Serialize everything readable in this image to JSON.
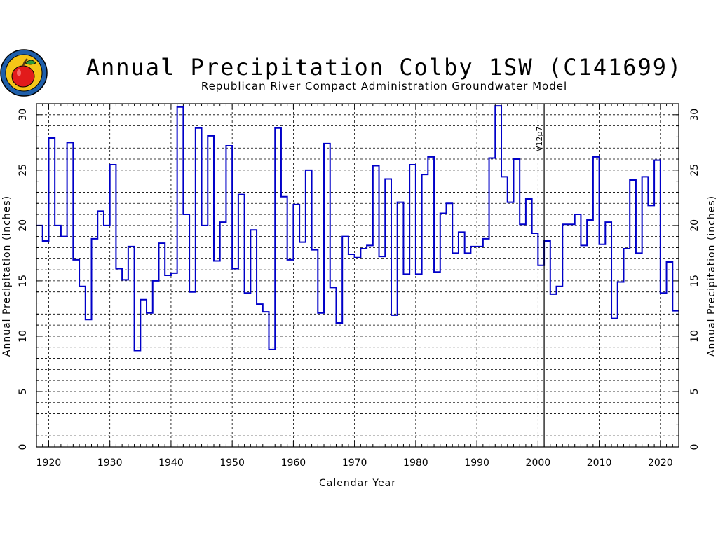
{
  "colors": {
    "series": "#0000c8",
    "grid": "#000000",
    "logo_ring": "#1f5faa",
    "logo_inner": "#f5c518",
    "apple": "#e21b1b"
  },
  "logo": {
    "icon": "apple-seal-logo"
  },
  "chart_data": {
    "type": "line",
    "step": true,
    "title": "Annual Precipitation Colby 1SW (C141699)",
    "subtitle": "Republican River Compact Administration Groundwater Model",
    "xlabel": "Calendar Year",
    "ylabel": "Annual Precipitation (inches)",
    "y2label": "Annual Precipitation (inches)",
    "xlim": [
      1918,
      2023
    ],
    "ylim": [
      0,
      31
    ],
    "x_ticks": [
      1920,
      1930,
      1940,
      1950,
      1960,
      1970,
      1980,
      1990,
      2000,
      2010,
      2020
    ],
    "x_tick_labels": [
      "1920",
      "1930",
      "1940",
      "1950",
      "1960",
      "1970",
      "1980",
      "1990",
      "2000",
      "2010",
      "2020"
    ],
    "y_ticks": [
      0,
      5,
      10,
      15,
      20,
      25,
      30
    ],
    "y_tick_labels": [
      "0",
      "5",
      "10",
      "15",
      "20",
      "25",
      "30"
    ],
    "grid": true,
    "annotations": [
      {
        "x": 2001,
        "label": "V12p7"
      }
    ],
    "series": [
      {
        "x": [
          1918,
          1919,
          1920,
          1921,
          1922,
          1923,
          1924,
          1925,
          1926,
          1927,
          1928,
          1929,
          1930,
          1931,
          1932,
          1933,
          1934,
          1935,
          1936,
          1937,
          1938,
          1939,
          1940,
          1941,
          1942,
          1943,
          1944,
          1945,
          1946,
          1947,
          1948,
          1949,
          1950,
          1951,
          1952,
          1953,
          1954,
          1955,
          1956,
          1957,
          1958,
          1959,
          1960,
          1961,
          1962,
          1963,
          1964,
          1965,
          1966,
          1967,
          1968,
          1969,
          1970,
          1971,
          1972,
          1973,
          1974,
          1975,
          1976,
          1977,
          1978,
          1979,
          1980,
          1981,
          1982,
          1983,
          1984,
          1985,
          1986,
          1987,
          1988,
          1989,
          1990,
          1991,
          1992,
          1993,
          1994,
          1995,
          1996,
          1997,
          1998,
          1999,
          2000,
          2001,
          2002,
          2003,
          2004,
          2005,
          2006,
          2007,
          2008,
          2009,
          2010,
          2011,
          2012,
          2013,
          2014,
          2015,
          2016,
          2017,
          2018,
          2019,
          2020,
          2021,
          2022
        ],
        "values": [
          20.0,
          18.6,
          27.9,
          20.0,
          19.0,
          27.5,
          16.9,
          14.5,
          11.5,
          18.8,
          21.3,
          20.0,
          25.5,
          16.1,
          15.1,
          18.1,
          8.7,
          13.3,
          12.1,
          15.0,
          18.4,
          15.5,
          15.7,
          30.7,
          21.0,
          14.0,
          28.8,
          20.0,
          28.1,
          16.8,
          20.3,
          27.2,
          16.1,
          22.8,
          13.9,
          19.6,
          12.9,
          12.2,
          8.8,
          28.8,
          22.6,
          16.9,
          21.9,
          18.5,
          25.0,
          17.8,
          12.1,
          27.4,
          14.4,
          11.2,
          19.0,
          17.4,
          17.1,
          17.9,
          18.2,
          25.4,
          17.2,
          24.2,
          11.9,
          22.1,
          15.6,
          25.5,
          15.6,
          24.6,
          26.2,
          15.8,
          21.1,
          22.0,
          17.5,
          19.4,
          17.5,
          18.1,
          18.1,
          18.8,
          26.1,
          30.8,
          24.4,
          22.1,
          26.0,
          20.1,
          22.4,
          19.3,
          16.4,
          18.6,
          13.8,
          14.5,
          20.1,
          20.1,
          21.0,
          18.2,
          20.5,
          26.2,
          18.3,
          20.3,
          11.6,
          14.9,
          17.9,
          24.1,
          17.5,
          24.4,
          21.8,
          25.9,
          13.9,
          16.7,
          12.3
        ]
      }
    ]
  }
}
